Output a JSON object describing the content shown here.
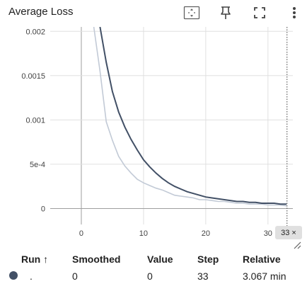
{
  "header": {
    "title": "Average Loss",
    "icons": [
      "fit-domain-icon",
      "pin-icon",
      "fullscreen-icon",
      "more-vert-icon"
    ]
  },
  "chart_data": {
    "type": "line",
    "title": "Average Loss",
    "xlabel": "",
    "ylabel": "",
    "xlim": [
      -5,
      34
    ],
    "ylim": [
      -0.00018,
      0.00205
    ],
    "x_ticks": [
      "0",
      "10",
      "20",
      "30"
    ],
    "y_ticks": [
      "0",
      "5e-4",
      "0.001",
      "0.0015",
      "0.002"
    ],
    "grid": true,
    "series": [
      {
        "role": "smoothed",
        "color": "#425066",
        "x": [
          3,
          4,
          5,
          6,
          7,
          8,
          9,
          10,
          11,
          12,
          13,
          14,
          15,
          16,
          17,
          18,
          19,
          20,
          21,
          22,
          23,
          24,
          25,
          26,
          27,
          28,
          29,
          30,
          31,
          32,
          33
        ],
        "y": [
          0.00205,
          0.00165,
          0.00132,
          0.00109,
          0.00092,
          0.00078,
          0.00066,
          0.00055,
          0.00047,
          0.0004,
          0.00034,
          0.00029,
          0.00025,
          0.00022,
          0.00019,
          0.00017,
          0.00015,
          0.00013,
          0.00012,
          0.00011,
          0.0001,
          9e-05,
          8e-05,
          8e-05,
          7e-05,
          7e-05,
          6e-05,
          6e-05,
          6e-05,
          5e-05,
          5e-05
        ]
      },
      {
        "role": "raw",
        "color": "#c2cad6",
        "x": [
          2,
          3,
          4,
          5,
          6,
          7,
          8,
          9,
          10,
          11,
          12,
          13,
          14,
          15,
          16,
          17,
          18,
          19,
          20,
          21,
          22,
          23,
          24,
          25,
          26,
          27,
          28,
          29,
          30,
          31,
          32,
          33
        ],
        "y": [
          0.00205,
          0.00155,
          0.00098,
          0.00077,
          0.00059,
          0.00048,
          0.0004,
          0.00033,
          0.00029,
          0.00026,
          0.00023,
          0.00021,
          0.00018,
          0.00015,
          0.00014,
          0.00013,
          0.00012,
          0.0001,
          0.0001,
          9e-05,
          8e-05,
          8e-05,
          7e-05,
          6e-05,
          6e-05,
          5e-05,
          5e-05,
          5e-05,
          4e-05,
          4e-05,
          4e-05,
          3e-05
        ]
      }
    ],
    "hover_step": 33
  },
  "step_indicator": {
    "value": "33",
    "close": "×"
  },
  "legend": {
    "headers": {
      "run": "Run ↑",
      "smoothed": "Smoothed",
      "value": "Value",
      "step": "Step",
      "relative": "Relative"
    },
    "rows": [
      {
        "color": "#425066",
        "run": ".",
        "smoothed": "0",
        "value": "0",
        "step": "33",
        "relative": "3.067 min"
      }
    ]
  }
}
